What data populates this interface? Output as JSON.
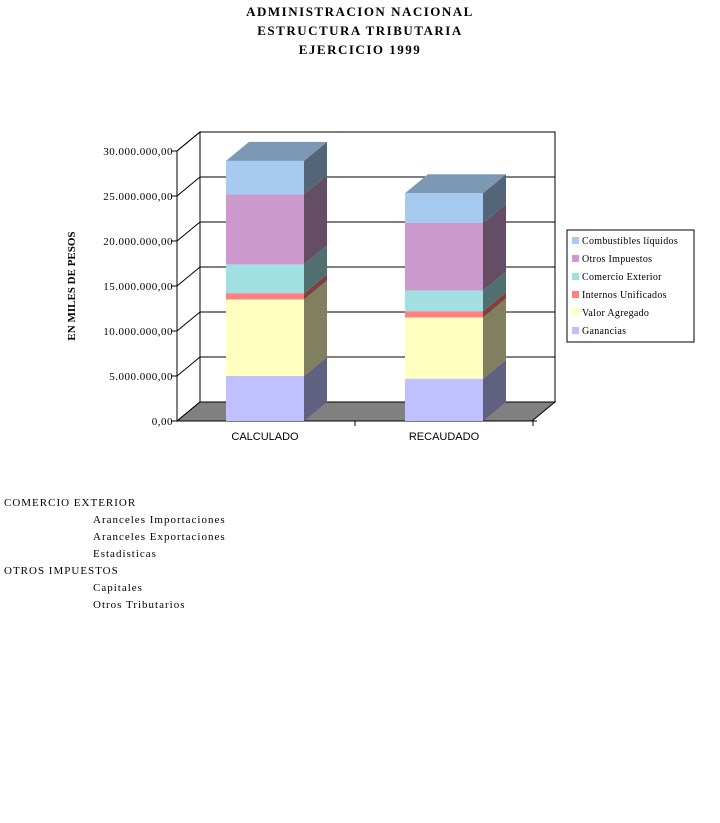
{
  "title": {
    "line1": "ADMINISTRACION NACIONAL",
    "line2": "ESTRUCTURA TRIBUTARIA",
    "line3": "EJERCICIO 1999"
  },
  "chart_data": {
    "type": "bar",
    "stacked": true,
    "style": "3d",
    "categories": [
      "CALCULADO",
      "RECAUDADO"
    ],
    "ylabel": "EN MILES DE PESOS",
    "ylim": [
      0,
      30000000
    ],
    "yticks": [
      "0,00",
      "5.000.000,00",
      "10.000.000,00",
      "15.000.000,00",
      "20.000.000,00",
      "25.000.000,00",
      "30.000.000,00"
    ],
    "grid": true,
    "legend_position": "right",
    "series": [
      {
        "name": "Ganancias",
        "color": "#c0c0ff",
        "values": [
          5000000,
          4700000
        ]
      },
      {
        "name": "Valor Agregado",
        "color": "#ffffc0",
        "values": [
          8500000,
          6800000
        ]
      },
      {
        "name": "Internos Unificados",
        "color": "#ff8080",
        "values": [
          700000,
          700000
        ]
      },
      {
        "name": "Comercio Exterior",
        "color": "#a0e0e0",
        "values": [
          3200000,
          2300000
        ]
      },
      {
        "name": "Otros Impuestos",
        "color": "#cc99cc",
        "values": [
          7800000,
          7500000
        ]
      },
      {
        "name": "Combustibles líquidos",
        "color": "#a6caf0",
        "values": [
          3700000,
          3300000
        ]
      }
    ]
  },
  "notes": [
    {
      "heading": "COMERCIO EXTERIOR",
      "items": [
        "Aranceles Importaciones",
        "Aranceles Exportaciones",
        "Estadísticas"
      ]
    },
    {
      "heading": "OTROS IMPUESTOS",
      "items": [
        "Capitales",
        "Otros Tributarios"
      ]
    }
  ]
}
